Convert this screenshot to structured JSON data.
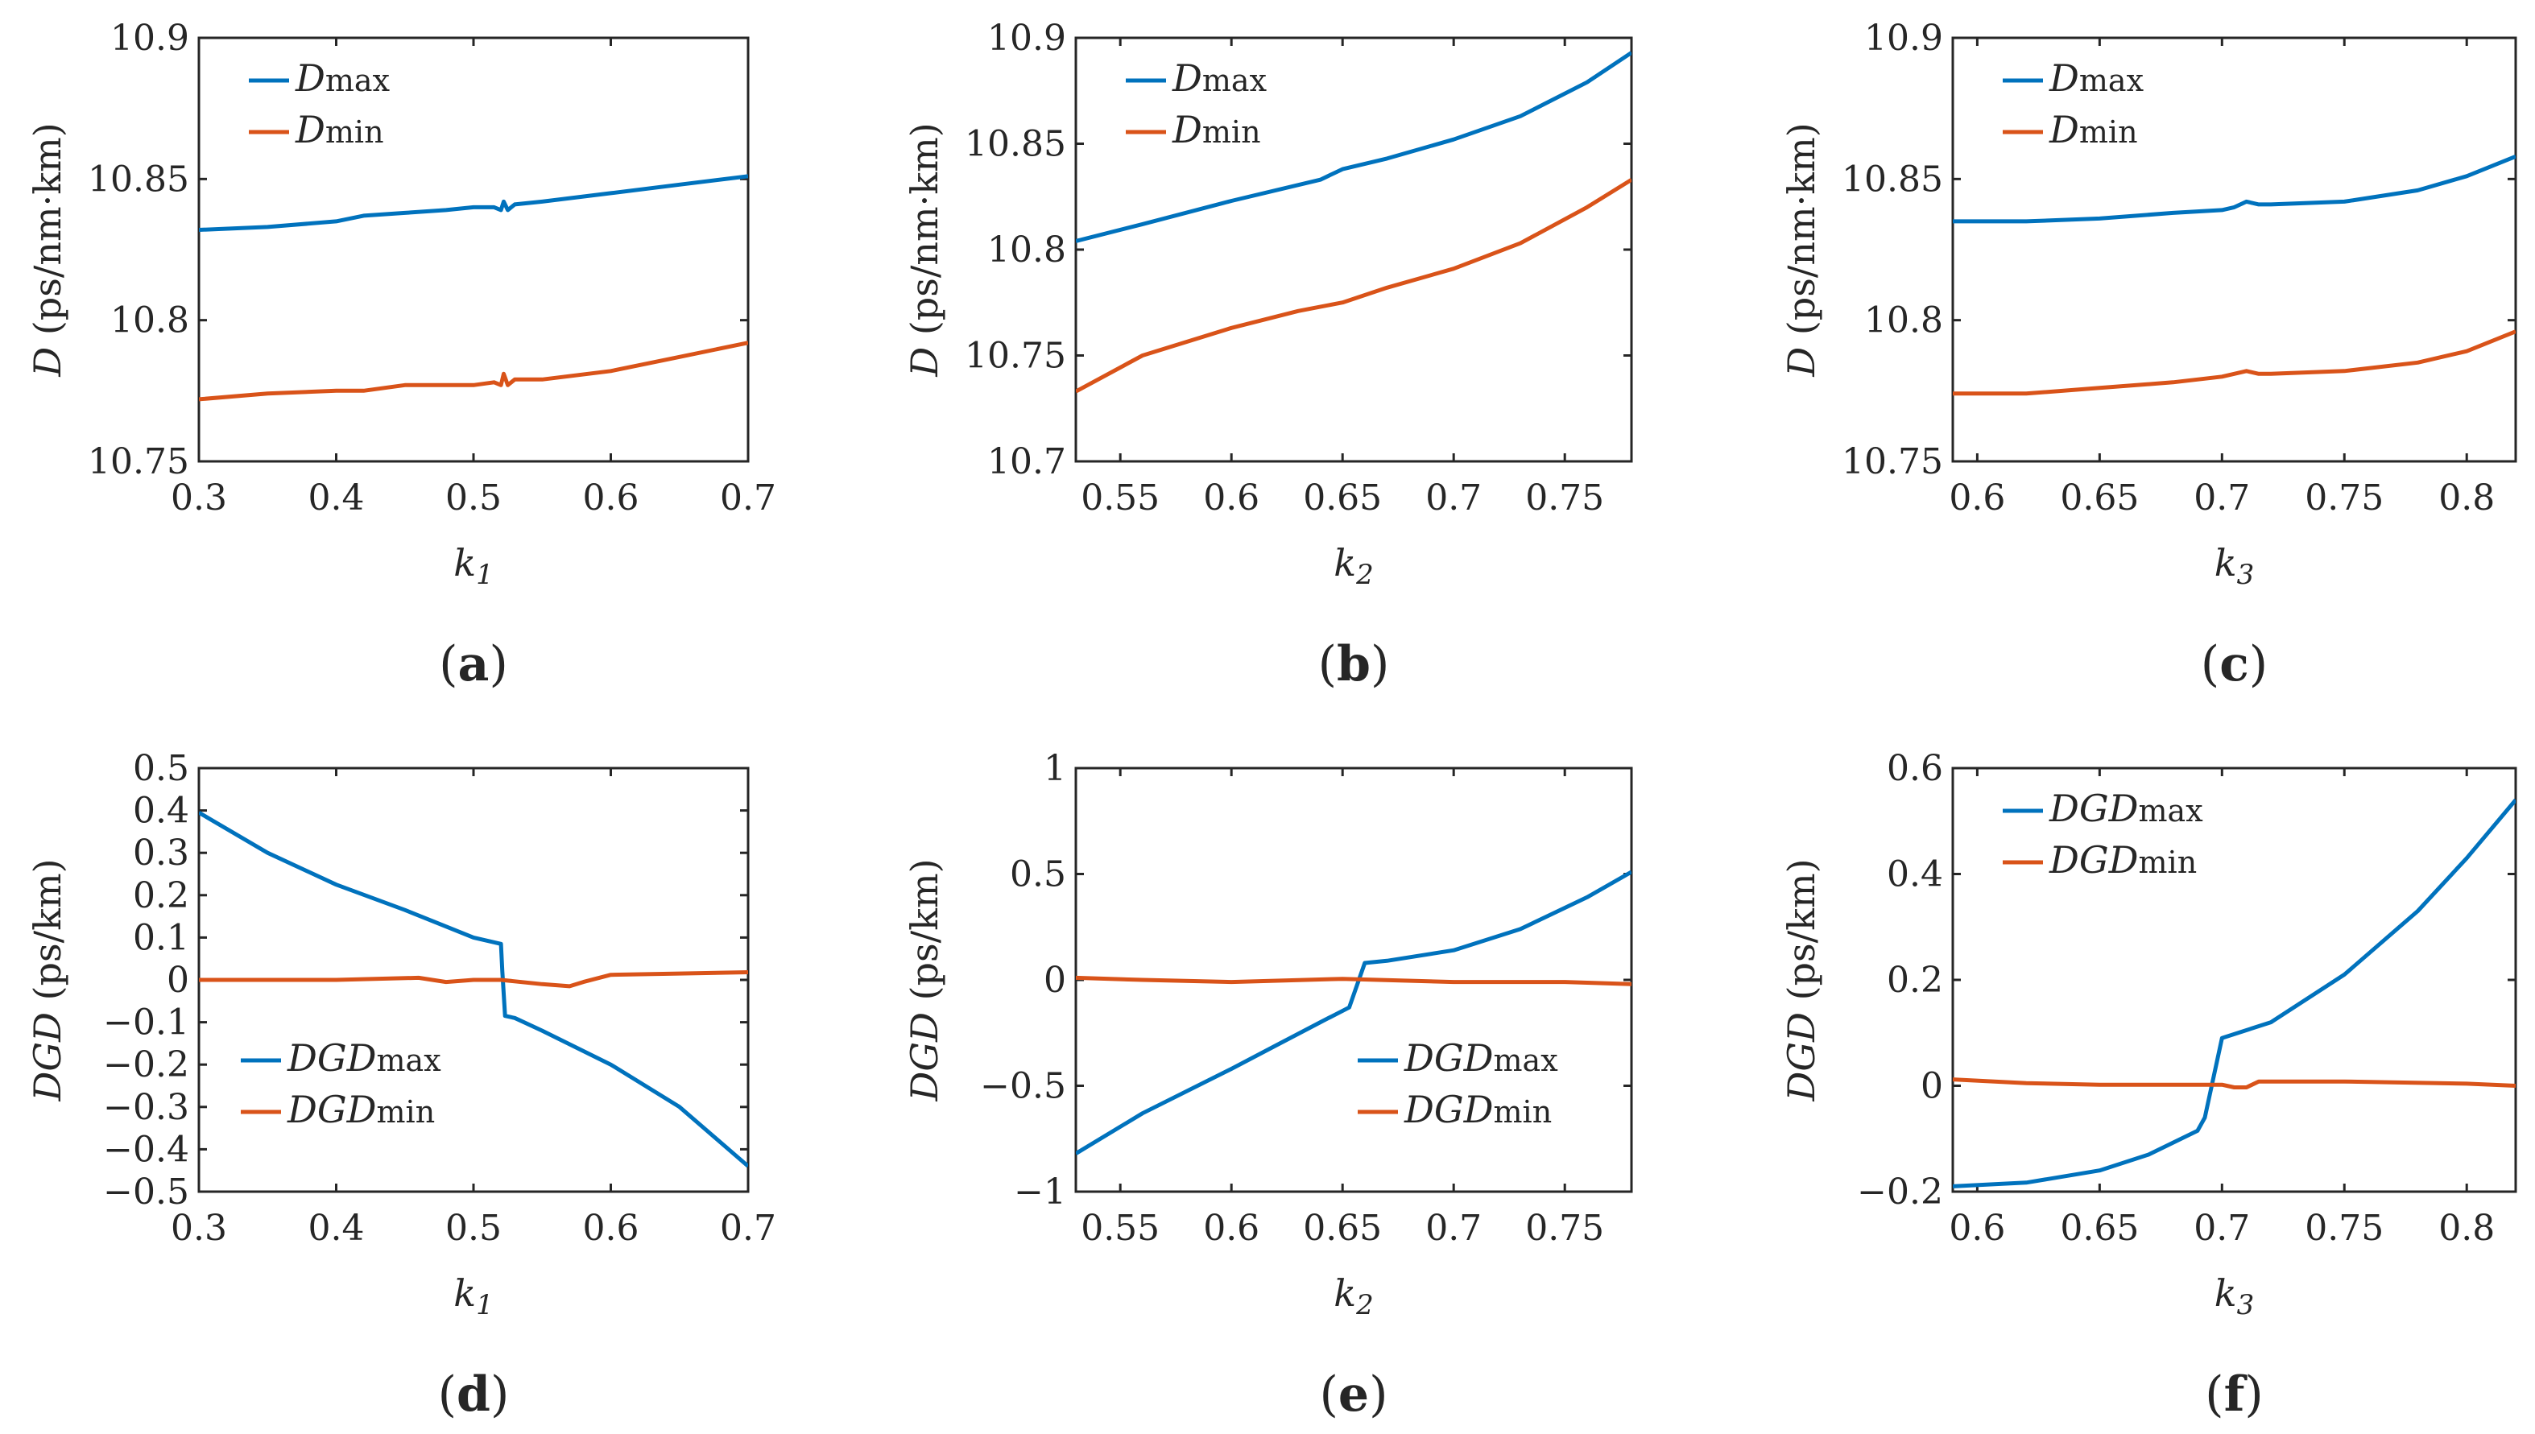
{
  "figure": {
    "palette": {
      "max": "#0072BD",
      "min": "#D95319",
      "axis": "#262626"
    }
  },
  "chart_data": [
    {
      "type": "line",
      "panel_label": "(a)",
      "panel_letter": "a",
      "xlabel": "k1",
      "xlabel_base": "k",
      "xlabel_sub": "1",
      "ylabel": "D (ps/nm·km)",
      "ylabel_sym": "D",
      "ylabel_unit": " (ps/nm·km)",
      "xlim": [
        0.3,
        0.7
      ],
      "ylim": [
        10.75,
        10.9
      ],
      "xticks": [
        0.3,
        0.4,
        0.5,
        0.6,
        0.7
      ],
      "xtick_labels": [
        "0.3",
        "0.4",
        "0.5",
        "0.6",
        "0.7"
      ],
      "yticks": [
        10.75,
        10.8,
        10.85,
        10.9
      ],
      "ytick_labels": [
        "10.75",
        "10.8",
        "10.85",
        "10.9"
      ],
      "legend_position": "top-left",
      "series": [
        {
          "name": "Dmax",
          "name_base": "D",
          "name_sub": "max",
          "key": "max",
          "x": [
            0.3,
            0.35,
            0.4,
            0.42,
            0.45,
            0.48,
            0.5,
            0.515,
            0.52,
            0.522,
            0.525,
            0.53,
            0.55,
            0.6,
            0.65,
            0.7
          ],
          "y": [
            10.832,
            10.833,
            10.835,
            10.837,
            10.838,
            10.839,
            10.84,
            10.84,
            10.839,
            10.842,
            10.839,
            10.841,
            10.842,
            10.845,
            10.848,
            10.851
          ]
        },
        {
          "name": "Dmin",
          "name_base": "D",
          "name_sub": "min",
          "key": "min",
          "x": [
            0.3,
            0.35,
            0.4,
            0.42,
            0.45,
            0.5,
            0.515,
            0.52,
            0.522,
            0.525,
            0.53,
            0.55,
            0.6,
            0.65,
            0.7
          ],
          "y": [
            10.772,
            10.774,
            10.775,
            10.775,
            10.777,
            10.777,
            10.778,
            10.777,
            10.781,
            10.777,
            10.779,
            10.779,
            10.782,
            10.787,
            10.792
          ]
        }
      ]
    },
    {
      "type": "line",
      "panel_label": "(b)",
      "panel_letter": "b",
      "xlabel": "k2",
      "xlabel_base": "k",
      "xlabel_sub": "2",
      "ylabel": "D (ps/nm·km)",
      "ylabel_sym": "D",
      "ylabel_unit": " (ps/nm·km)",
      "xlim": [
        0.53,
        0.78
      ],
      "ylim": [
        10.7,
        10.9
      ],
      "xticks": [
        0.55,
        0.6,
        0.65,
        0.7,
        0.75
      ],
      "xtick_labels": [
        "0.55",
        "0.6",
        "0.65",
        "0.7",
        "0.75"
      ],
      "yticks": [
        10.7,
        10.75,
        10.8,
        10.85,
        10.9
      ],
      "ytick_labels": [
        "10.7",
        "10.75",
        "10.8",
        "10.85",
        "10.9"
      ],
      "legend_position": "top-left",
      "series": [
        {
          "name": "Dmax",
          "name_base": "D",
          "name_sub": "max",
          "key": "max",
          "x": [
            0.53,
            0.56,
            0.6,
            0.64,
            0.65,
            0.67,
            0.7,
            0.73,
            0.76,
            0.78
          ],
          "y": [
            10.804,
            10.812,
            10.823,
            10.833,
            10.838,
            10.843,
            10.852,
            10.863,
            10.879,
            10.893
          ]
        },
        {
          "name": "Dmin",
          "name_base": "D",
          "name_sub": "min",
          "key": "min",
          "x": [
            0.53,
            0.56,
            0.6,
            0.63,
            0.65,
            0.67,
            0.7,
            0.73,
            0.76,
            0.78
          ],
          "y": [
            10.733,
            10.75,
            10.763,
            10.771,
            10.775,
            10.782,
            10.791,
            10.803,
            10.82,
            10.833
          ]
        }
      ]
    },
    {
      "type": "line",
      "panel_label": "(c)",
      "panel_letter": "c",
      "xlabel": "k3",
      "xlabel_base": "k",
      "xlabel_sub": "3",
      "ylabel": "D (ps/nm·km)",
      "ylabel_sym": "D",
      "ylabel_unit": " (ps/nm·km)",
      "xlim": [
        0.59,
        0.82
      ],
      "ylim": [
        10.75,
        10.9
      ],
      "xticks": [
        0.6,
        0.65,
        0.7,
        0.75,
        0.8
      ],
      "xtick_labels": [
        "0.6",
        "0.65",
        "0.7",
        "0.75",
        "0.8"
      ],
      "yticks": [
        10.75,
        10.8,
        10.85,
        10.9
      ],
      "ytick_labels": [
        "10.75",
        "10.8",
        "10.85",
        "10.9"
      ],
      "legend_position": "top-left",
      "series": [
        {
          "name": "Dmax",
          "name_base": "D",
          "name_sub": "max",
          "key": "max",
          "x": [
            0.59,
            0.62,
            0.65,
            0.68,
            0.7,
            0.705,
            0.71,
            0.715,
            0.72,
            0.75,
            0.78,
            0.8,
            0.82
          ],
          "y": [
            10.835,
            10.835,
            10.836,
            10.838,
            10.839,
            10.84,
            10.842,
            10.841,
            10.841,
            10.842,
            10.846,
            10.851,
            10.858
          ]
        },
        {
          "name": "Dmin",
          "name_base": "D",
          "name_sub": "min",
          "key": "min",
          "x": [
            0.59,
            0.62,
            0.65,
            0.68,
            0.7,
            0.705,
            0.71,
            0.715,
            0.72,
            0.75,
            0.78,
            0.8,
            0.82
          ],
          "y": [
            10.774,
            10.774,
            10.776,
            10.778,
            10.78,
            10.781,
            10.782,
            10.781,
            10.781,
            10.782,
            10.785,
            10.789,
            10.796
          ]
        }
      ]
    },
    {
      "type": "line",
      "panel_label": "(d)",
      "panel_letter": "d",
      "xlabel": "k1",
      "xlabel_base": "k",
      "xlabel_sub": "1",
      "ylabel": "DGD (ps/km)",
      "ylabel_sym": "DGD",
      "ylabel_unit": " (ps/km)",
      "xlim": [
        0.3,
        0.7
      ],
      "ylim": [
        -0.5,
        0.5
      ],
      "xticks": [
        0.3,
        0.4,
        0.5,
        0.6,
        0.7
      ],
      "xtick_labels": [
        "0.3",
        "0.4",
        "0.5",
        "0.6",
        "0.7"
      ],
      "yticks": [
        -0.5,
        -0.4,
        -0.3,
        -0.2,
        -0.1,
        0,
        0.1,
        0.2,
        0.3,
        0.4,
        0.5
      ],
      "ytick_labels": [
        "−0.5",
        "−0.4",
        "−0.3",
        "−0.2",
        "−0.1",
        "0",
        "0.1",
        "0.2",
        "0.3",
        "0.4",
        "0.5"
      ],
      "legend_position": "bottom-left",
      "series": [
        {
          "name": "DGDmax",
          "name_base": "DGD",
          "name_sub": "max",
          "key": "max",
          "x": [
            0.3,
            0.35,
            0.4,
            0.45,
            0.5,
            0.52,
            0.521,
            0.523,
            0.53,
            0.55,
            0.6,
            0.65,
            0.7
          ],
          "y": [
            0.395,
            0.3,
            0.225,
            0.165,
            0.1,
            0.085,
            0.02,
            -0.085,
            -0.09,
            -0.12,
            -0.2,
            -0.3,
            -0.44
          ]
        },
        {
          "name": "DGDmin",
          "name_base": "DGD",
          "name_sub": "min",
          "key": "min",
          "x": [
            0.3,
            0.4,
            0.46,
            0.48,
            0.5,
            0.52,
            0.55,
            0.57,
            0.58,
            0.6,
            0.65,
            0.7
          ],
          "y": [
            0.0,
            0.0,
            0.005,
            -0.005,
            0.0,
            0.0,
            -0.01,
            -0.015,
            -0.005,
            0.012,
            0.015,
            0.018
          ]
        }
      ]
    },
    {
      "type": "line",
      "panel_label": "(e)",
      "panel_letter": "e",
      "xlabel": "k2",
      "xlabel_base": "k",
      "xlabel_sub": "2",
      "ylabel": "DGD (ps/km)",
      "ylabel_sym": "DGD",
      "ylabel_unit": " (ps/km)",
      "xlim": [
        0.53,
        0.78
      ],
      "ylim": [
        -1,
        1
      ],
      "xticks": [
        0.55,
        0.6,
        0.65,
        0.7,
        0.75
      ],
      "xtick_labels": [
        "0.55",
        "0.6",
        "0.65",
        "0.7",
        "0.75"
      ],
      "yticks": [
        -1,
        -0.5,
        0,
        0.5,
        1
      ],
      "ytick_labels": [
        "−1",
        "−0.5",
        "0",
        "0.5",
        "1"
      ],
      "legend_position": "bottom-right",
      "series": [
        {
          "name": "DGDmax",
          "name_base": "DGD",
          "name_sub": "max",
          "key": "max",
          "x": [
            0.53,
            0.56,
            0.6,
            0.62,
            0.64,
            0.653,
            0.66,
            0.67,
            0.7,
            0.73,
            0.76,
            0.78
          ],
          "y": [
            -0.82,
            -0.63,
            -0.42,
            -0.31,
            -0.2,
            -0.13,
            0.08,
            0.09,
            0.14,
            0.24,
            0.39,
            0.51
          ]
        },
        {
          "name": "DGDmin",
          "name_base": "DGD",
          "name_sub": "min",
          "key": "min",
          "x": [
            0.53,
            0.56,
            0.6,
            0.65,
            0.7,
            0.75,
            0.78
          ],
          "y": [
            0.01,
            0.0,
            -0.01,
            0.005,
            -0.01,
            -0.01,
            -0.02
          ]
        }
      ]
    },
    {
      "type": "line",
      "panel_label": "(f)",
      "panel_letter": "f",
      "xlabel": "k3",
      "xlabel_base": "k",
      "xlabel_sub": "3",
      "ylabel": "DGD (ps/km)",
      "ylabel_sym": "DGD",
      "ylabel_unit": " (ps/km)",
      "xlim": [
        0.59,
        0.82
      ],
      "ylim": [
        -0.2,
        0.6
      ],
      "xticks": [
        0.6,
        0.65,
        0.7,
        0.75,
        0.8
      ],
      "xtick_labels": [
        "0.6",
        "0.65",
        "0.7",
        "0.75",
        "0.8"
      ],
      "yticks": [
        -0.2,
        0,
        0.2,
        0.4,
        0.6
      ],
      "ytick_labels": [
        "−0.2",
        "0",
        "0.2",
        "0.4",
        "0.6"
      ],
      "legend_position": "top-left",
      "series": [
        {
          "name": "DGDmax",
          "name_base": "DGD",
          "name_sub": "max",
          "key": "max",
          "x": [
            0.59,
            0.62,
            0.65,
            0.67,
            0.69,
            0.693,
            0.7,
            0.72,
            0.75,
            0.78,
            0.8,
            0.82
          ],
          "y": [
            -0.19,
            -0.183,
            -0.16,
            -0.13,
            -0.085,
            -0.06,
            0.09,
            0.12,
            0.21,
            0.33,
            0.43,
            0.54
          ]
        },
        {
          "name": "DGDmin",
          "name_base": "DGD",
          "name_sub": "min",
          "key": "min",
          "x": [
            0.59,
            0.62,
            0.65,
            0.68,
            0.7,
            0.705,
            0.71,
            0.715,
            0.72,
            0.75,
            0.8,
            0.82
          ],
          "y": [
            0.012,
            0.005,
            0.002,
            0.002,
            0.002,
            -0.003,
            -0.003,
            0.008,
            0.008,
            0.008,
            0.004,
            0.0
          ]
        }
      ]
    }
  ]
}
